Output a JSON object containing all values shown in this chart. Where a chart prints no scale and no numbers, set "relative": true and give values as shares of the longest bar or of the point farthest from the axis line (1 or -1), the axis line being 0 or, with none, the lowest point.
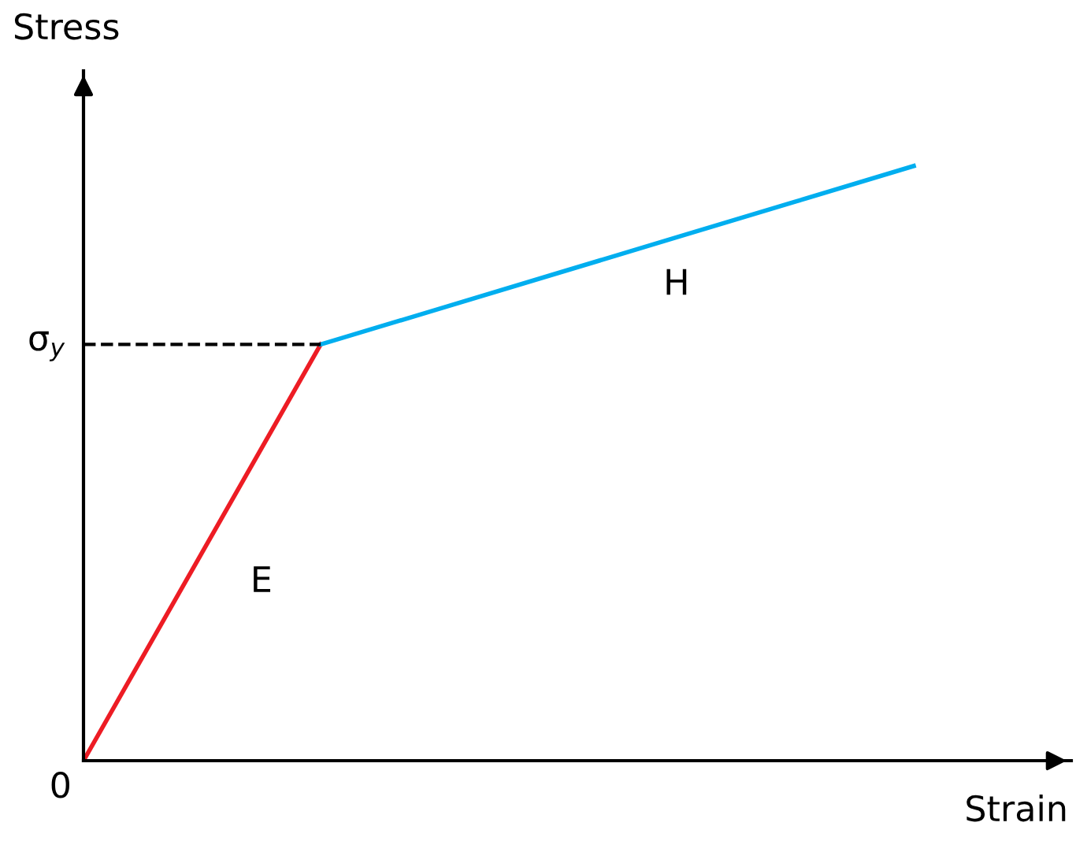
{
  "chart_data": {
    "type": "line",
    "relative": true,
    "xlabel": "Strain",
    "ylabel": "Stress",
    "categories": [
      null,
      null,
      null,
      null,
      null,
      null,
      null,
      null
    ],
    "series": [
      {
        "name": "E",
        "color": "#ed1c24",
        "values": [
          0,
          0.35,
          0.7,
          null,
          null,
          null,
          null,
          null
        ]
      },
      {
        "name": "H",
        "color": "#00aeef",
        "values": [
          null,
          null,
          0.7,
          0.76,
          0.82,
          0.88,
          0.94,
          1.0
        ]
      }
    ],
    "ref_lines": [
      {
        "axis": "y",
        "value": 0.7,
        "label": "σ$_{y}$",
        "color": "#000000",
        "line_style": "dashed"
      }
    ],
    "annotations": [
      "0"
    ],
    "marker": "none",
    "line_style": "solid",
    "grid": false,
    "legend": false
  }
}
